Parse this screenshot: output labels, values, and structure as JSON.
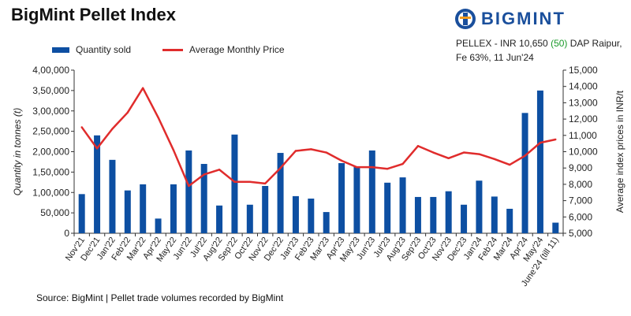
{
  "header": {
    "title": "BigMint Pellet Index",
    "logo_text": "BIGMINT"
  },
  "info": {
    "line1_prefix": "PELLEX - INR 10,650 ",
    "line1_change": "(50)",
    "line1_suffix": " DAP Raipur,",
    "line2": "Fe 63%, 11 Jun'24"
  },
  "legend": {
    "bars": "Quantity sold",
    "line": "Average Monthly Price"
  },
  "footer": {
    "source": "Source: BigMint | Pellet trade volumes recorded by BigMint"
  },
  "colors": {
    "bars": "#0d4fa2",
    "line": "#e02c2c",
    "change_positive": "#1a9a2a"
  },
  "chart_data": {
    "type": "bar",
    "categories": [
      "Nov'21",
      "Dec'21",
      "Jan'22",
      "Feb'22",
      "Mar'22",
      "Apr'22",
      "May'22",
      "Jun'22",
      "Jul'22",
      "Aug'22",
      "Sep'22",
      "Oct'22",
      "Nov'22",
      "Dec'22",
      "Jan'23",
      "Feb'23",
      "Mar'23",
      "Apr'23",
      "May'23",
      "Jun'23",
      "Jul'23",
      "Aug'23",
      "Sep'23",
      "Oct'23",
      "Nov'23",
      "Dec'23",
      "Jan'24",
      "Feb'24",
      "Mar'24",
      "Apr'24",
      "May'24",
      "June'24 (till 11)"
    ],
    "series": [
      {
        "name": "Quantity sold",
        "type": "bar",
        "axis": "left",
        "values": [
          96000,
          240000,
          180000,
          105000,
          120000,
          36000,
          120000,
          203000,
          170000,
          68000,
          242000,
          70000,
          116000,
          197000,
          91000,
          85000,
          52000,
          172000,
          163000,
          203000,
          124000,
          137000,
          89000,
          89000,
          103000,
          70000,
          129000,
          90000,
          60000,
          295000,
          350000,
          26000
        ]
      },
      {
        "name": "Average Monthly Price",
        "type": "line",
        "axis": "right",
        "values": [
          11500,
          10200,
          11400,
          12400,
          13900,
          12100,
          10100,
          7900,
          8600,
          8900,
          8150,
          8150,
          8050,
          9000,
          10050,
          10150,
          9950,
          9450,
          9050,
          9050,
          8950,
          9250,
          10350,
          9950,
          9600,
          9950,
          9850,
          9550,
          9200,
          9750,
          10550,
          10750
        ]
      }
    ],
    "ylabel": "Quantity in tonnes (t)",
    "y2label": "Average index prices in INR/t",
    "ylim": [
      0,
      400000
    ],
    "y2lim": [
      5000,
      15000
    ],
    "yticks": [
      "0",
      "50,000",
      "1,00,000",
      "1,50,000",
      "2,00,000",
      "2,50,000",
      "3,00,000",
      "3,50,000",
      "4,00,000"
    ],
    "y2ticks": [
      "5,000",
      "6,000",
      "7,000",
      "8,000",
      "9,000",
      "10,000",
      "11,000",
      "12,000",
      "13,000",
      "14,000",
      "15,000"
    ],
    "grid": false,
    "legend_position": "top-left"
  }
}
